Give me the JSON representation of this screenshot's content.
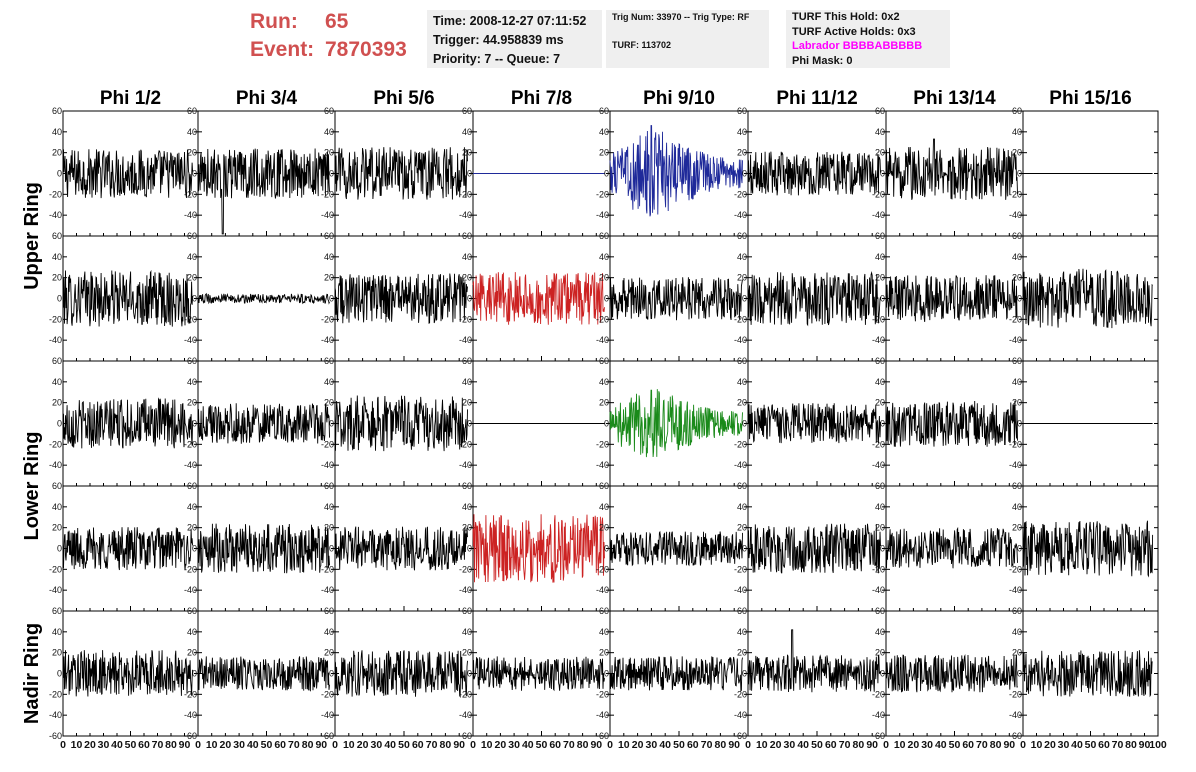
{
  "header": {
    "run_label": "Run:",
    "run_value": "65",
    "event_label": "Event:",
    "event_value": "7870393",
    "time_line": "Time: 2008-12-27 07:11:52",
    "trigger_line": "Trigger: 44.958839 ms",
    "priority_line": "Priority: 7 -- Queue: 7",
    "trig_line": "Trig Num: 33970 -- Trig Type: RF",
    "turf_line": "TURF: 113702",
    "turf_this_hold": "TURF This Hold: 0x2",
    "turf_active_holds": "TURF Active Holds: 0x3",
    "labrador_line": "Labrador BBBBABBBBB",
    "phi_mask_line": "Phi Mask: 0"
  },
  "colors": {
    "run_text": "#d05050",
    "labrador_text": "#ff00ff",
    "info_bg": "#efefef",
    "default_trace": "#000000",
    "blue_trace": "#1f2a9a",
    "red_trace": "#cc2222",
    "green_trace": "#1a8a1a"
  },
  "chart_data": {
    "type": "line",
    "columns": [
      "Phi 1/2",
      "Phi 3/4",
      "Phi 5/6",
      "Phi 7/8",
      "Phi 9/10",
      "Phi 11/12",
      "Phi 13/14",
      "Phi 15/16"
    ],
    "ring_labels": [
      "Upper Ring",
      "Lower Ring",
      "Nadir Ring"
    ],
    "xlim": [
      0,
      100
    ],
    "ylim": [
      -60,
      60
    ],
    "y_ticks": [
      -60,
      -40,
      -20,
      0,
      20,
      40,
      60
    ],
    "x_ticks": [
      0,
      10,
      20,
      30,
      40,
      50,
      60,
      70,
      80,
      90,
      100
    ],
    "n_samples": 256,
    "x_max_sample": 96,
    "panels": [
      [
        {
          "color": "black",
          "amp": 16
        },
        {
          "color": "black",
          "amp": 16,
          "spike": [
            18,
            -58
          ]
        },
        {
          "color": "black",
          "amp": 17
        },
        {
          "color": "blue_flat",
          "amp": 0
        },
        {
          "color": "blue",
          "amp": 20,
          "spike": [
            30,
            46
          ]
        },
        {
          "color": "black",
          "amp": 14
        },
        {
          "color": "black",
          "amp": 17,
          "spike": [
            35,
            33
          ]
        },
        {
          "color": "black_flat",
          "amp": 0
        }
      ],
      [
        {
          "color": "black",
          "amp": 18
        },
        {
          "color": "black",
          "amp": 3
        },
        {
          "color": "black",
          "amp": 16
        },
        {
          "color": "red",
          "amp": 17
        },
        {
          "color": "black",
          "amp": 14
        },
        {
          "color": "black",
          "amp": 17
        },
        {
          "color": "black",
          "amp": 15
        },
        {
          "color": "black",
          "amp": 19
        }
      ],
      [
        {
          "color": "black",
          "amp": 16
        },
        {
          "color": "black",
          "amp": 13
        },
        {
          "color": "black",
          "amp": 18
        },
        {
          "color": "black_flat",
          "amp": 0
        },
        {
          "color": "green",
          "amp": 16,
          "spike": [
            30,
            32
          ]
        },
        {
          "color": "black",
          "amp": 13
        },
        {
          "color": "black",
          "amp": 15
        },
        {
          "color": "black_flat",
          "amp": 0
        }
      ],
      [
        {
          "color": "black",
          "amp": 14
        },
        {
          "color": "black",
          "amp": 16
        },
        {
          "color": "black",
          "amp": 14
        },
        {
          "color": "red",
          "amp": 22,
          "spike": [
            88,
            30
          ]
        },
        {
          "color": "black",
          "amp": 11
        },
        {
          "color": "black",
          "amp": 16
        },
        {
          "color": "black",
          "amp": 13
        },
        {
          "color": "black",
          "amp": 18
        }
      ],
      [
        {
          "color": "black",
          "amp": 15
        },
        {
          "color": "black",
          "amp": 11
        },
        {
          "color": "black",
          "amp": 15
        },
        {
          "color": "black",
          "amp": 11
        },
        {
          "color": "black",
          "amp": 11
        },
        {
          "color": "black",
          "amp": 12,
          "spike": [
            32,
            42
          ]
        },
        {
          "color": "black",
          "amp": 12
        },
        {
          "color": "black",
          "amp": 15
        }
      ]
    ]
  }
}
